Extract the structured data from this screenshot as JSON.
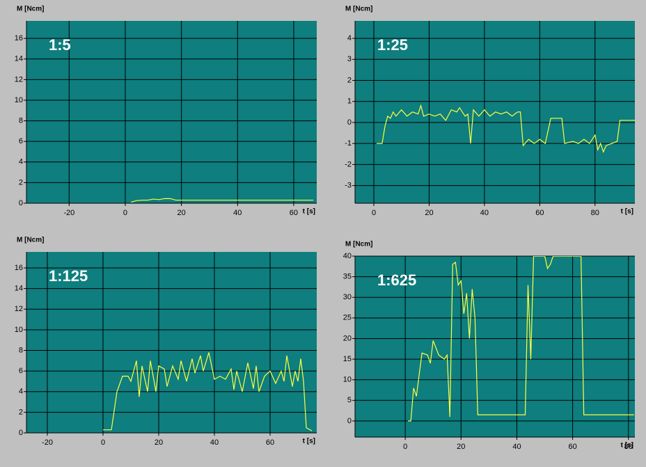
{
  "chart_data": [
    {
      "type": "line",
      "annotation": "1:5",
      "ylabel": "M [Ncm]",
      "xlabel": "t [s]",
      "color": "#ffff40",
      "grid": true,
      "xlim": [
        -35.2,
        68.2
      ],
      "ylim": [
        0,
        17.7
      ],
      "xticks": [
        -20,
        0,
        20,
        40,
        60
      ],
      "yticks": [
        0,
        2,
        4,
        6,
        8,
        10,
        12,
        14,
        16
      ],
      "x": [
        2,
        4,
        6,
        8,
        10,
        12,
        14,
        16,
        18,
        20,
        30,
        40,
        50,
        60,
        67
      ],
      "values": [
        0.1,
        0.25,
        0.3,
        0.3,
        0.4,
        0.35,
        0.45,
        0.45,
        0.3,
        0.3,
        0.3,
        0.3,
        0.3,
        0.3,
        0.3
      ]
    },
    {
      "type": "line",
      "annotation": "1:25",
      "ylabel": "M [Ncm]",
      "xlabel": "t [s]",
      "color": "#ffff40",
      "grid": true,
      "xlim": [
        -6.8,
        94.4
      ],
      "ylim": [
        -3.84,
        4.83
      ],
      "xticks": [
        0,
        20,
        40,
        60,
        80
      ],
      "yticks": [
        -3,
        -2,
        -1,
        0,
        1,
        2,
        3,
        4
      ],
      "x": [
        1,
        3,
        4,
        5,
        6,
        7,
        8,
        10,
        12,
        14,
        16,
        17,
        18,
        20,
        22,
        24,
        26,
        28,
        30,
        31,
        33,
        34,
        35,
        36,
        38,
        40,
        42,
        44,
        46,
        48,
        50,
        52,
        53,
        54,
        56,
        58,
        60,
        62,
        64,
        66,
        68,
        69,
        72,
        74,
        76,
        78,
        80,
        81,
        82,
        83,
        84,
        86,
        88,
        89,
        92,
        95
      ],
      "values": [
        -1,
        -1,
        -0.2,
        0.3,
        0.2,
        0.5,
        0.3,
        0.6,
        0.3,
        0.5,
        0.4,
        0.8,
        0.3,
        0.4,
        0.3,
        0.4,
        0.1,
        0.6,
        0.5,
        0.7,
        0.3,
        0.4,
        -1,
        0.6,
        0.3,
        0.6,
        0.3,
        0.5,
        0.4,
        0.5,
        0.3,
        0.5,
        0.5,
        -1.1,
        -0.8,
        -1,
        -0.8,
        -1,
        0.2,
        0.2,
        0.2,
        -1,
        -0.9,
        -1,
        -0.8,
        -1,
        -0.6,
        -1.3,
        -1,
        -1.4,
        -1.1,
        -1,
        -0.9,
        0.1,
        0.1,
        0.1
      ]
    },
    {
      "type": "line",
      "annotation": "1:125",
      "ylabel": "M [Ncm]",
      "xlabel": "t [s]",
      "color": "#ffff40",
      "grid": true,
      "xlim": [
        -27.5,
        76.75
      ],
      "ylim": [
        0,
        17.55
      ],
      "xticks": [
        -20,
        0,
        20,
        40,
        60
      ],
      "yticks": [
        0,
        2,
        4,
        6,
        8,
        10,
        12,
        14,
        16
      ],
      "x": [
        0,
        3,
        5,
        7,
        9,
        10,
        12,
        13,
        14,
        16,
        17,
        18,
        19,
        20,
        22,
        23,
        25,
        27,
        28,
        30,
        32,
        33,
        35,
        36,
        38,
        40,
        42,
        44,
        46,
        47,
        48,
        50,
        52,
        54,
        55,
        56,
        58,
        60,
        62,
        64,
        65,
        66,
        68,
        69,
        70,
        71,
        72,
        73,
        75
      ],
      "values": [
        0.3,
        0.3,
        4,
        5.5,
        5.5,
        5,
        7,
        3.5,
        6.5,
        4,
        7,
        5.5,
        4,
        6.5,
        6.2,
        4.5,
        6.5,
        5.2,
        7,
        5,
        7.2,
        5.8,
        7.5,
        6,
        7.8,
        5.2,
        5.5,
        5.2,
        6.2,
        4.2,
        6,
        4,
        6.8,
        4.3,
        6.5,
        4,
        5.5,
        6,
        4.8,
        6,
        5,
        7.5,
        4.5,
        6,
        5,
        7.2,
        5,
        0.5,
        0.2
      ]
    },
    {
      "type": "line",
      "annotation": "1:625",
      "ylabel": "M [Ncm]",
      "xlabel": "t [s]",
      "color": "#ffff40",
      "grid": true,
      "xlim": [
        -18,
        82.3
      ],
      "ylim": [
        -3.9,
        40
      ],
      "xticks": [
        0,
        20,
        40,
        60,
        80
      ],
      "yticks": [
        0,
        5,
        10,
        15,
        20,
        25,
        30,
        35,
        40
      ],
      "x": [
        1,
        2,
        3,
        4,
        6,
        8,
        9,
        10,
        12,
        14,
        15,
        16,
        17,
        18,
        19,
        20,
        21,
        22,
        23,
        24,
        25,
        26,
        43,
        44,
        45,
        46,
        48,
        50,
        51,
        52,
        53,
        63,
        64,
        82
      ],
      "values": [
        0,
        0,
        8,
        6,
        16.5,
        16,
        14,
        19.5,
        16,
        15,
        16,
        1,
        38,
        38.5,
        33,
        34,
        26,
        31,
        20,
        32,
        25,
        1.5,
        1.5,
        33,
        15,
        40,
        40,
        40,
        37,
        38,
        40,
        40,
        1.5,
        1.5
      ]
    }
  ]
}
